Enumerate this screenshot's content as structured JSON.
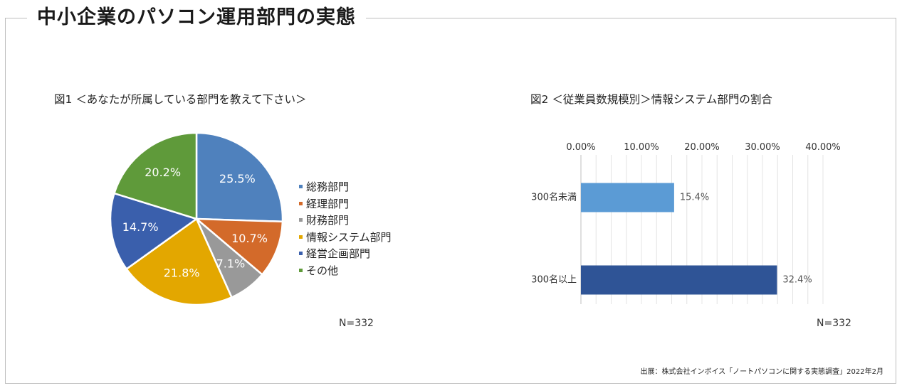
{
  "page": {
    "title": "中小企業のパソコン運用部門の実態",
    "source": "出展：株式会社インボイス「ノートパソコンに関する実態調査」2022年2月"
  },
  "chart_data": [
    {
      "type": "pie",
      "title": "図1 ＜あなたが所属している部門を教えて下さい＞",
      "n_label": "N=332",
      "categories": [
        "総務部門",
        "経理部門",
        "財務部門",
        "情報システム部門",
        "経営企画部門",
        "その他"
      ],
      "values": [
        25.5,
        10.7,
        7.1,
        21.8,
        14.7,
        20.2
      ],
      "labels": [
        "25.5%",
        "10.7%",
        "7.1%",
        "21.8%",
        "14.7%",
        "20.2%"
      ],
      "colors": [
        "#4f81bd",
        "#d36a2a",
        "#999999",
        "#e3a700",
        "#3a5fac",
        "#5f9a3a"
      ],
      "legend": "right"
    },
    {
      "type": "bar",
      "orientation": "horizontal",
      "title": "図2 ＜従業員数規模別＞情報システム部門の割合",
      "n_label": "N=332",
      "categories": [
        "300名未満",
        "300名以上"
      ],
      "values": [
        15.4,
        32.4
      ],
      "labels": [
        "15.4%",
        "32.4%"
      ],
      "colors": [
        "#5b9bd5",
        "#2f5496"
      ],
      "xlim": [
        0,
        40
      ],
      "ticks": [
        "0.00%",
        "10.00%",
        "20.00%",
        "30.00%",
        "40.00%"
      ],
      "grid": true
    }
  ]
}
